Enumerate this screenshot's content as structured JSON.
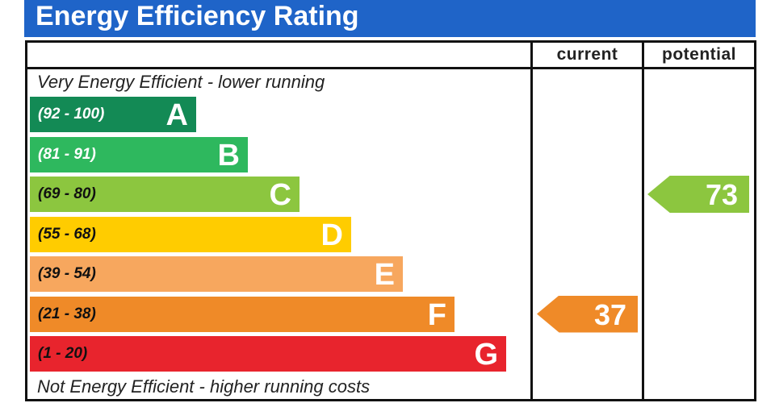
{
  "title": "Energy Efficiency Rating",
  "headers": {
    "current": "current",
    "potential": "potential"
  },
  "top_note": "Very Energy Efficient - lower running",
  "bottom_note": "Not Energy Efficient - higher running costs",
  "chart_data": {
    "type": "bar",
    "categories": [
      "A",
      "B",
      "C",
      "D",
      "E",
      "F",
      "G"
    ],
    "ranges": [
      "(92 - 100)",
      "(81 - 91)",
      "(69 - 80)",
      "(55 - 68)",
      "(39 - 54)",
      "(21 - 38)",
      "(1 - 20)"
    ],
    "colors": [
      "#138a55",
      "#2eb85e",
      "#8cc63f",
      "#ffcc00",
      "#f7a75e",
      "#ef8a28",
      "#e8242d"
    ],
    "range_text_colors": [
      "#ffffff",
      "#ffffff",
      "#111111",
      "#111111",
      "#111111",
      "#111111",
      "#111111"
    ],
    "current": {
      "value": 37,
      "band": "F",
      "color": "#ef8a28"
    },
    "potential": {
      "value": 73,
      "band": "C",
      "color": "#8cc63f"
    }
  }
}
